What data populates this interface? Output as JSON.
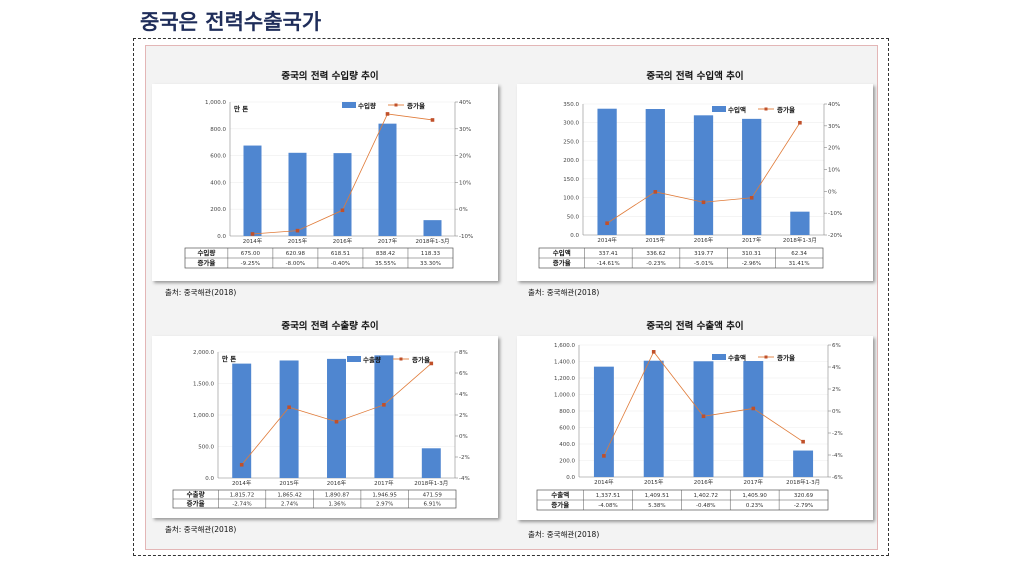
{
  "page_title": "중국은 전력수출국가",
  "colors": {
    "bar": "#4f86d0",
    "line": "#e07b39",
    "marker": "#c0502a",
    "title": "#1f2d5a"
  },
  "chart_data": [
    {
      "type": "bar+line",
      "title": "중국의 전력 수입량 추이",
      "unit": "만 톤",
      "categories": [
        "2014年",
        "2015年",
        "2016年",
        "2017年",
        "2018年1-3月"
      ],
      "bar_series": {
        "name": "수입량",
        "values": [
          675.0,
          620.98,
          618.51,
          838.42,
          118.33
        ],
        "labels": [
          "675.00",
          "620.98",
          "618.51",
          "838.42",
          "118.33"
        ]
      },
      "line_series": {
        "name": "증가율",
        "values": [
          -9.25,
          -8.0,
          -0.4,
          35.55,
          33.3
        ],
        "labels": [
          "-9.25%",
          "-8.00%",
          "-0.40%",
          "35.55%",
          "33.30%"
        ]
      },
      "ylim": [
        0,
        1000
      ],
      "yticks": [
        "0.0",
        "200.0",
        "400.0",
        "600.0",
        "800.0",
        "1,000.0"
      ],
      "y2lim": [
        -10,
        40
      ],
      "y2ticks": [
        "-10%",
        "0%",
        "10%",
        "20%",
        "30%",
        "40%"
      ],
      "source": "출처: 중국해관(2018)"
    },
    {
      "type": "bar+line",
      "title": "중국의 전력 수입액 추이",
      "unit": "",
      "categories": [
        "2014年",
        "2015年",
        "2016年",
        "2017年",
        "2018年1-3月"
      ],
      "bar_series": {
        "name": "수입액",
        "values": [
          337.41,
          336.62,
          319.77,
          310.31,
          62.34
        ],
        "labels": [
          "337.41",
          "336.62",
          "319.77",
          "310.31",
          "62.34"
        ]
      },
      "line_series": {
        "name": "증가율",
        "values": [
          -14.61,
          -0.23,
          -5.01,
          -2.96,
          31.41
        ],
        "labels": [
          "-14.61%",
          "-0.23%",
          "-5.01%",
          "-2.96%",
          "31.41%"
        ]
      },
      "ylim": [
        0,
        350
      ],
      "yticks": [
        "0.0",
        "50.0",
        "100.0",
        "150.0",
        "200.0",
        "250.0",
        "300.0",
        "350.0"
      ],
      "y2lim": [
        -20,
        40
      ],
      "y2ticks": [
        "-20%",
        "-10%",
        "0%",
        "10%",
        "20%",
        "30%",
        "40%"
      ],
      "source": "출처: 중국해관(2018)"
    },
    {
      "type": "bar+line",
      "title": "중국의 전력 수출량 추이",
      "unit": "만 톤",
      "categories": [
        "2014年",
        "2015年",
        "2016年",
        "2017年",
        "2018年1-3月"
      ],
      "bar_series": {
        "name": "수출량",
        "values": [
          1815.72,
          1865.42,
          1890.87,
          1946.95,
          471.59
        ],
        "labels": [
          "1,815.72",
          "1,865.42",
          "1,890.87",
          "1,946.95",
          "471.59"
        ]
      },
      "line_series": {
        "name": "증가율",
        "values": [
          -2.74,
          2.74,
          1.36,
          2.97,
          6.91
        ],
        "labels": [
          "-2.74%",
          "2.74%",
          "1.36%",
          "2.97%",
          "6.91%"
        ]
      },
      "ylim": [
        0,
        2000
      ],
      "yticks": [
        "0.0",
        "500.0",
        "1,000.0",
        "1,500.0",
        "2,000.0"
      ],
      "y2lim": [
        -4,
        8
      ],
      "y2ticks": [
        "-4%",
        "-2%",
        "0%",
        "2%",
        "4%",
        "6%",
        "8%"
      ],
      "source": "출처: 중국해관(2018)"
    },
    {
      "type": "bar+line",
      "title": "중국의 전력 수출액 추이",
      "unit": "",
      "categories": [
        "2014年",
        "2015年",
        "2016年",
        "2017年",
        "2018年1-3月"
      ],
      "bar_series": {
        "name": "수출액",
        "values": [
          1337.51,
          1409.51,
          1402.72,
          1405.9,
          320.69
        ],
        "labels": [
          "1,337.51",
          "1,409.51",
          "1,402.72",
          "1,405.90",
          "320.69"
        ]
      },
      "line_series": {
        "name": "증가율",
        "values": [
          -4.08,
          5.38,
          -0.48,
          0.23,
          -2.79
        ],
        "labels": [
          "-4.08%",
          "5.38%",
          "-0.48%",
          "0.23%",
          "-2.79%"
        ]
      },
      "ylim": [
        0,
        1600
      ],
      "yticks": [
        "0.0",
        "200.0",
        "400.0",
        "600.0",
        "800.0",
        "1,000.0",
        "1,200.0",
        "1,400.0",
        "1,600.0"
      ],
      "y2lim": [
        -6,
        6
      ],
      "y2ticks": [
        "-6%",
        "-4%",
        "-2%",
        "0%",
        "2%",
        "4%",
        "6%"
      ],
      "source": "출처: 중국해관(2018)"
    }
  ]
}
